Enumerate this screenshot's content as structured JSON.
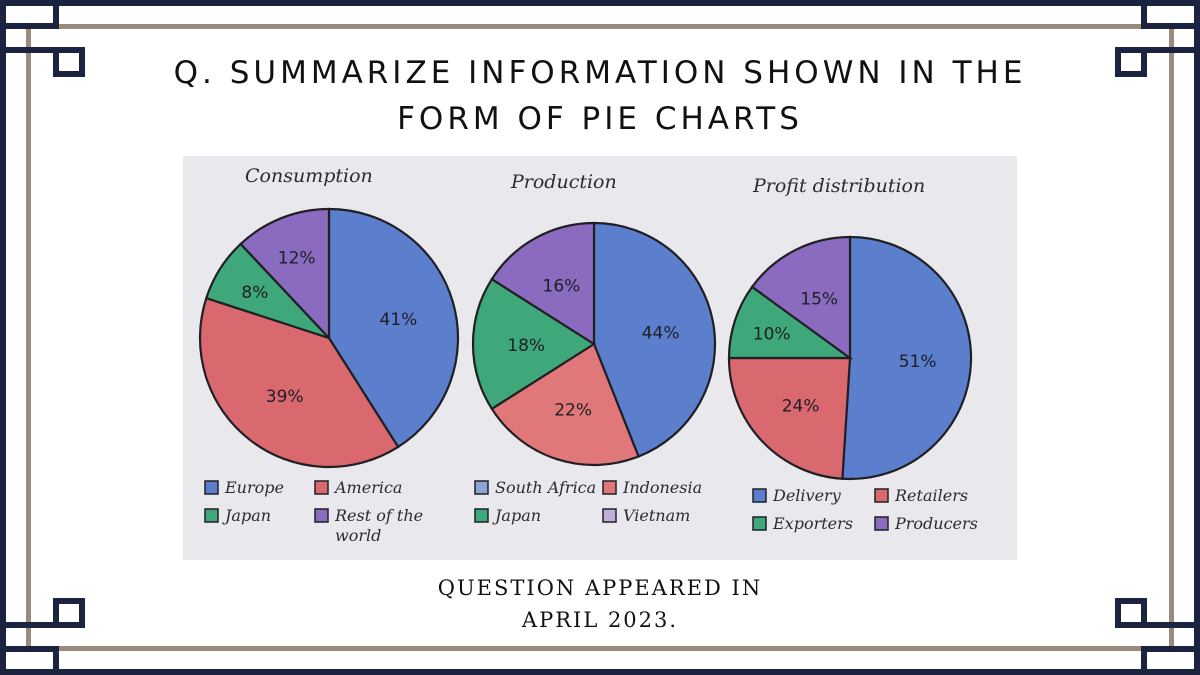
{
  "title_line1": "Q. SUMMARIZE INFORMATION SHOWN IN THE",
  "title_line2": "FORM OF PIE CHARTS",
  "footer_line1": "QUESTION APPEARED IN",
  "footer_line2": "APRIL 2023.",
  "colors": {
    "navy": "#1c2340",
    "tan": "#9b8a7c",
    "paper": "#e9e8ec"
  },
  "chart_data": [
    {
      "type": "pie",
      "title": "Consumption",
      "slices": [
        {
          "label": "Europe",
          "value": 41,
          "value_label": "41%",
          "color": "#5b7fcc"
        },
        {
          "label": "America",
          "value": 39,
          "value_label": "39%",
          "color": "#d9686f"
        },
        {
          "label": "Japan",
          "value": 8,
          "value_label": "8%",
          "color": "#3fa87a"
        },
        {
          "label": "Rest of the world",
          "value": 12,
          "value_label": "12%",
          "color": "#8b6bbf"
        }
      ],
      "legend": [
        {
          "label": "Europe",
          "color": "#5b7fcc"
        },
        {
          "label": "America",
          "color": "#d9686f"
        },
        {
          "label": "Japan",
          "color": "#3fa87a"
        },
        {
          "label": "Rest of the",
          "label2": "world",
          "color": "#8b6bbf"
        }
      ]
    },
    {
      "type": "pie",
      "title": "Production",
      "slices": [
        {
          "label": "South Africa",
          "value": 44,
          "value_label": "44%",
          "color": "#5b7fcc"
        },
        {
          "label": "Indonesia",
          "value": 22,
          "value_label": "22%",
          "color": "#e0787a"
        },
        {
          "label": "Japan",
          "value": 18,
          "value_label": "18%",
          "color": "#3fa87a"
        },
        {
          "label": "Vietnam",
          "value": 16,
          "value_label": "16%",
          "color": "#8b6bbf"
        }
      ],
      "legend": [
        {
          "label": "South Africa",
          "color": "#8ea4d6"
        },
        {
          "label": "Indonesia",
          "color": "#e0787a"
        },
        {
          "label": "Japan",
          "color": "#3fa87a"
        },
        {
          "label": "Vietnam",
          "color": "#c2aedb"
        }
      ]
    },
    {
      "type": "pie",
      "title": "Profit distribution",
      "slices": [
        {
          "label": "Delivery",
          "value": 51,
          "value_label": "51%",
          "color": "#5b7fcc"
        },
        {
          "label": "Retailers",
          "value": 24,
          "value_label": "24%",
          "color": "#d9686f"
        },
        {
          "label": "Exporters",
          "value": 10,
          "value_label": "10%",
          "color": "#3fa87a"
        },
        {
          "label": "Producers",
          "value": 15,
          "value_label": "15%",
          "color": "#8b6bbf"
        }
      ],
      "legend": [
        {
          "label": "Delivery",
          "color": "#5b7fcc"
        },
        {
          "label": "Retailers",
          "color": "#d9686f"
        },
        {
          "label": "Exporters",
          "color": "#3fa87a"
        },
        {
          "label": "Producers",
          "color": "#8b6bbf"
        }
      ]
    }
  ]
}
